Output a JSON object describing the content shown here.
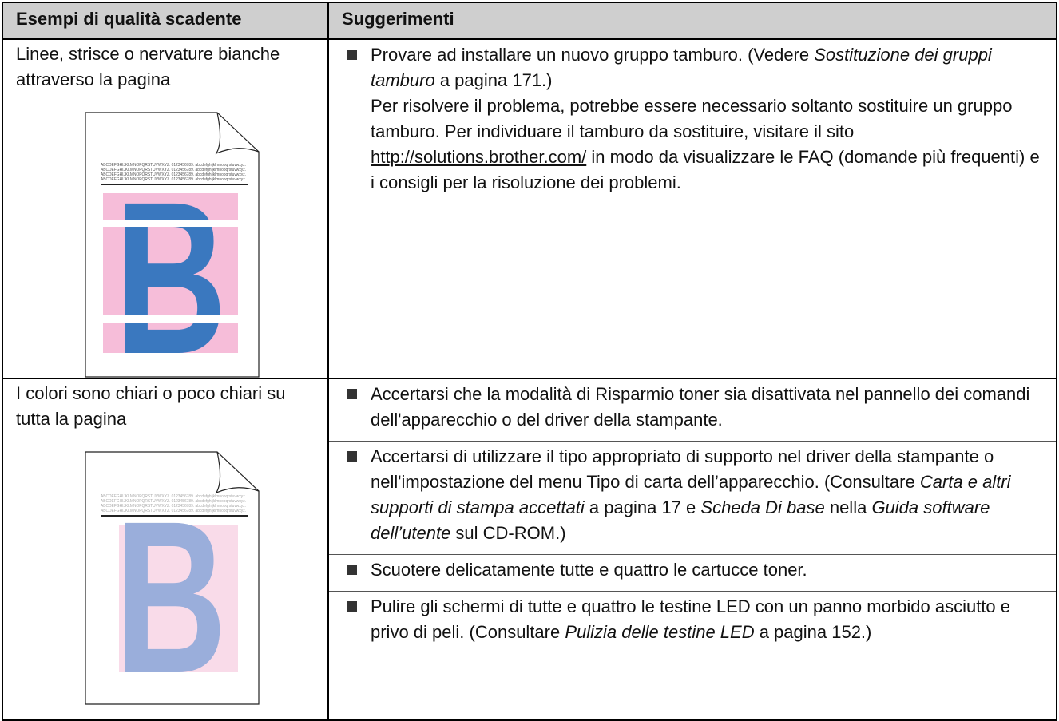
{
  "table": {
    "header": [
      "Esempi di qualità scadente",
      "Suggerimenti"
    ],
    "rows": [
      {
        "problem": "Linee, strisce o nervature bianche attraverso la pagina",
        "sample": {
          "style": "stripes",
          "text": "ABCDEFGHIJKLMNOPQRSTUVWXYZ. 0123456789. abcdefghijklmnopqrstuvwxyz.",
          "letter": "B",
          "background": "#f6bdd9",
          "color": "#3a78bf",
          "text_color": "#555555"
        },
        "suggestions": [
          [
            [
              {
                "text": "Provare ad installare un nuovo gruppo tamburo. (Vedere ",
                "style": "plain"
              },
              {
                "text": "Sostituzione dei gruppi tamburo",
                "style": "italic"
              },
              {
                "text": " a pagina 171.)",
                "style": "plain"
              }
            ],
            [
              {
                "text": "Per risolvere il problema, potrebbe essere necessario soltanto sostituire un gruppo tamburo. Per individuare il tamburo da sostituire, visitare il sito ",
                "style": "plain"
              },
              {
                "text": "http://solutions.brother.com/",
                "style": "link"
              },
              {
                "text": " in modo da visualizzare le FAQ (domande più frequenti) e i consigli per la risoluzione dei problemi.",
                "style": "plain"
              }
            ]
          ]
        ]
      },
      {
        "problem": "I colori sono chiari o poco chiari su tutta la pagina",
        "sample": {
          "style": "faded",
          "text": "ABCDEFGHIJKLMNOPQRSTUVWXYZ. 0123456789. abcdefghijklmnopqrstuvwxyz.",
          "letter": "B",
          "background": "#f9dbe9",
          "color": "#9aaedb",
          "text_color": "#aaaaaa"
        },
        "suggestions": [
          [
            [
              {
                "text": "Accertarsi che la modalità di Risparmio toner sia disattivata nel pannello dei comandi dell'apparecchio o del driver della stampante.",
                "style": "plain"
              }
            ]
          ],
          [
            [
              {
                "text": "Accertarsi di utilizzare il tipo appropriato di supporto nel driver della stampante o nell'impostazione del menu Tipo di carta dell’apparecchio. (Consultare ",
                "style": "plain"
              },
              {
                "text": "Carta e altri supporti di stampa accettati",
                "style": "italic"
              },
              {
                "text": " a pagina 17 e ",
                "style": "plain"
              },
              {
                "text": "Scheda Di base",
                "style": "italic"
              },
              {
                "text": " nella ",
                "style": "plain"
              },
              {
                "text": "Guida software dell’utente",
                "style": "italic"
              },
              {
                "text": " sul CD-ROM.)",
                "style": "plain"
              }
            ]
          ],
          [
            [
              {
                "text": "Scuotere delicatamente tutte e quattro le cartucce toner.",
                "style": "plain"
              }
            ]
          ],
          [
            [
              {
                "text": "Pulire gli schermi di tutte e quattro le testine LED con un panno morbido asciutto e privo di peli. (Consultare ",
                "style": "plain"
              },
              {
                "text": "Pulizia delle testine LED",
                "style": "italic"
              },
              {
                "text": " a pagina 152.)",
                "style": "plain"
              }
            ]
          ]
        ]
      }
    ]
  }
}
